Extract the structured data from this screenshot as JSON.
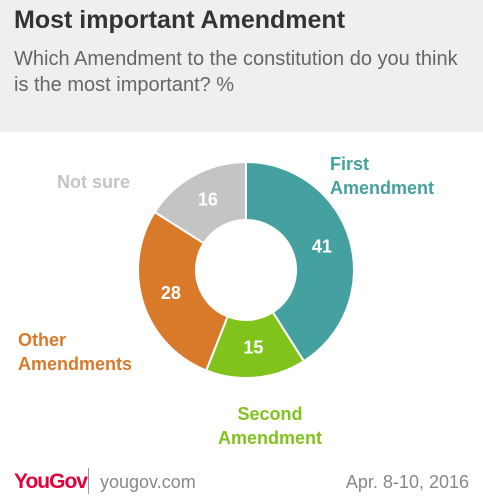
{
  "chart_data": {
    "type": "donut",
    "title": "Most important Amendment",
    "subtitle": "Which Amendment to the constitution do you think is the most important? %",
    "categories": [
      "First Amendment",
      "Second Amendment",
      "Other Amendments",
      "Not sure"
    ],
    "values": [
      41,
      15,
      28,
      16
    ],
    "colors": [
      "#45a19f",
      "#7fc31c",
      "#d97a2b",
      "#c4c4c4"
    ]
  },
  "footer": {
    "brand": "YouGov",
    "site": "yougov.com",
    "date": "Apr. 8-10, 2016"
  }
}
